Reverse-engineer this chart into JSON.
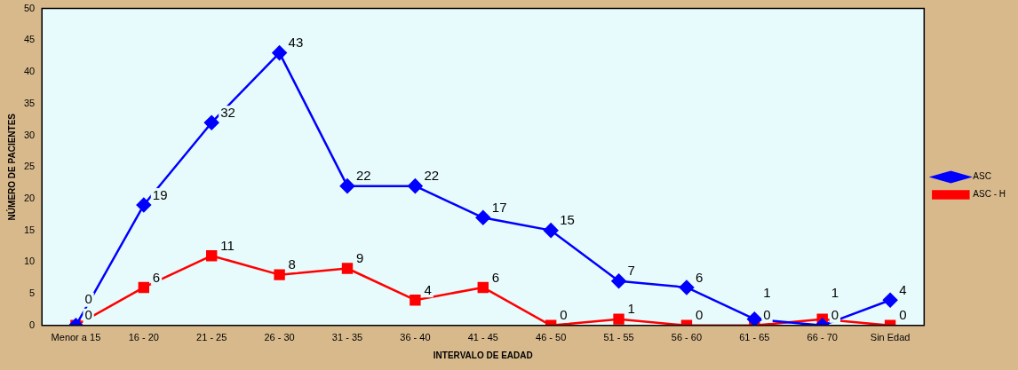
{
  "chart_data": {
    "type": "line",
    "xlabel": "INTERVALO DE EADAD",
    "ylabel": "NÚMERO DE PACIENTES",
    "categories": [
      "Menor a 15",
      "16 - 20",
      "21 - 25",
      "26 - 30",
      "31 - 35",
      "36 - 40",
      "41 - 45",
      "46 - 50",
      "51 - 55",
      "56 - 60",
      "61 - 65",
      "66 - 70",
      "Sin Edad"
    ],
    "series": [
      {
        "name": "ASC",
        "color": "#0000ff",
        "marker": "diamond",
        "values": [
          0,
          19,
          32,
          43,
          22,
          22,
          17,
          15,
          7,
          6,
          1,
          0,
          4
        ]
      },
      {
        "name": "ASC - H",
        "color": "#ff0000",
        "marker": "square",
        "values": [
          0,
          6,
          11,
          8,
          9,
          4,
          6,
          0,
          1,
          0,
          0,
          1,
          0
        ]
      }
    ],
    "ylim": [
      0,
      50
    ],
    "yticks": [
      0,
      5,
      10,
      15,
      20,
      25,
      30,
      35,
      40,
      45,
      50
    ],
    "grid": false,
    "legend": "right",
    "data_labels": true,
    "line_style": "solid"
  }
}
